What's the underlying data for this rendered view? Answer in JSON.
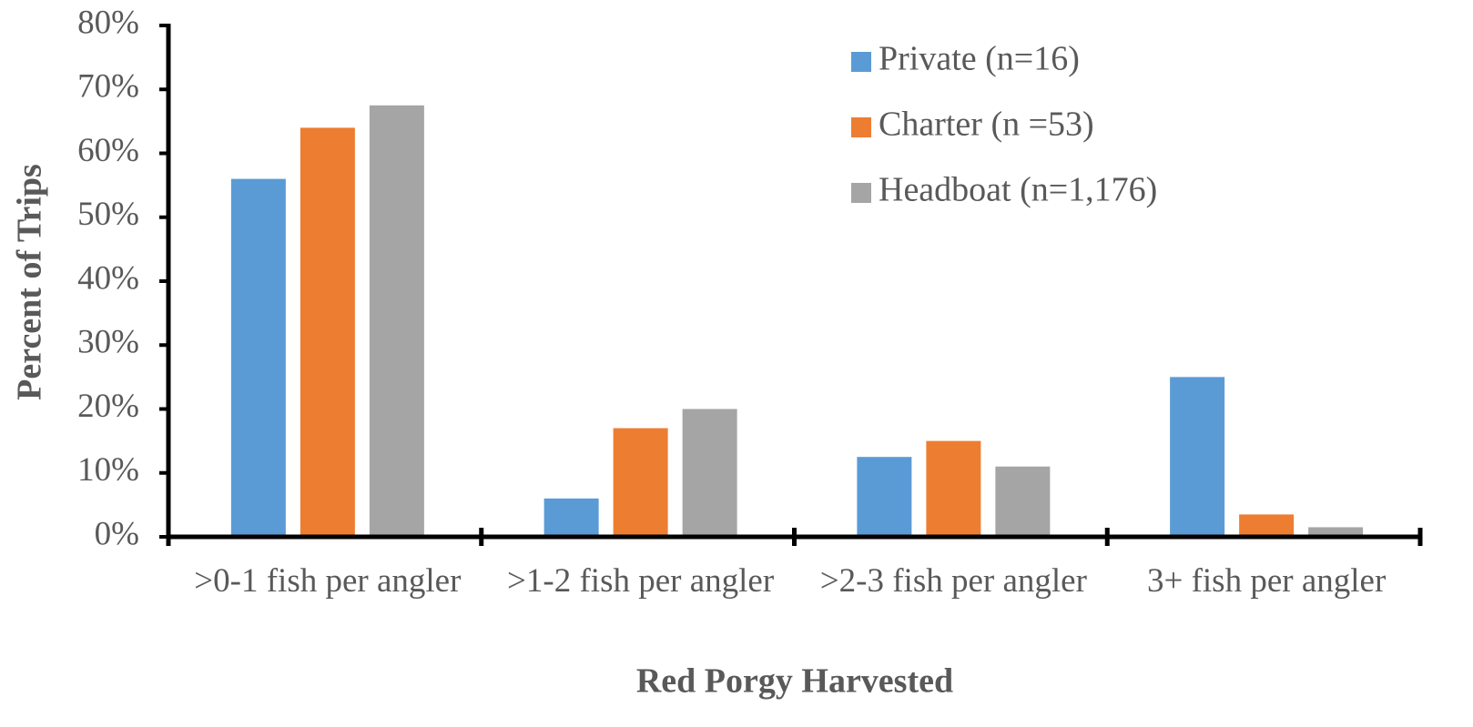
{
  "chart_data": {
    "type": "bar",
    "x_label": "Red Porgy Harvested",
    "y_label": "Percent of Trips",
    "categories": [
      ">0-1 fish per angler",
      ">1-2 fish per angler",
      ">2-3 fish per angler",
      "3+ fish per angler"
    ],
    "series": [
      {
        "name": "Private (n=16)",
        "color": "#5b9bd5",
        "values": [
          56,
          6,
          12.5,
          25
        ]
      },
      {
        "name": "Charter (n =53)",
        "color": "#ed7d31",
        "values": [
          64,
          17,
          15,
          3.5
        ]
      },
      {
        "name": "Headboat (n=1,176)",
        "color": "#a5a5a5",
        "values": [
          67.5,
          20,
          11,
          1.5
        ]
      }
    ],
    "ylim": [
      0,
      80
    ],
    "yticks": [
      {
        "value": 0,
        "label": "0%"
      },
      {
        "value": 10,
        "label": "10%"
      },
      {
        "value": 20,
        "label": "20%"
      },
      {
        "value": 30,
        "label": "30%"
      },
      {
        "value": 40,
        "label": "40%"
      },
      {
        "value": 50,
        "label": "50%"
      },
      {
        "value": 60,
        "label": "60%"
      },
      {
        "value": 70,
        "label": "70%"
      },
      {
        "value": 80,
        "label": "80%"
      }
    ],
    "grid": false,
    "legend": "top-right"
  }
}
